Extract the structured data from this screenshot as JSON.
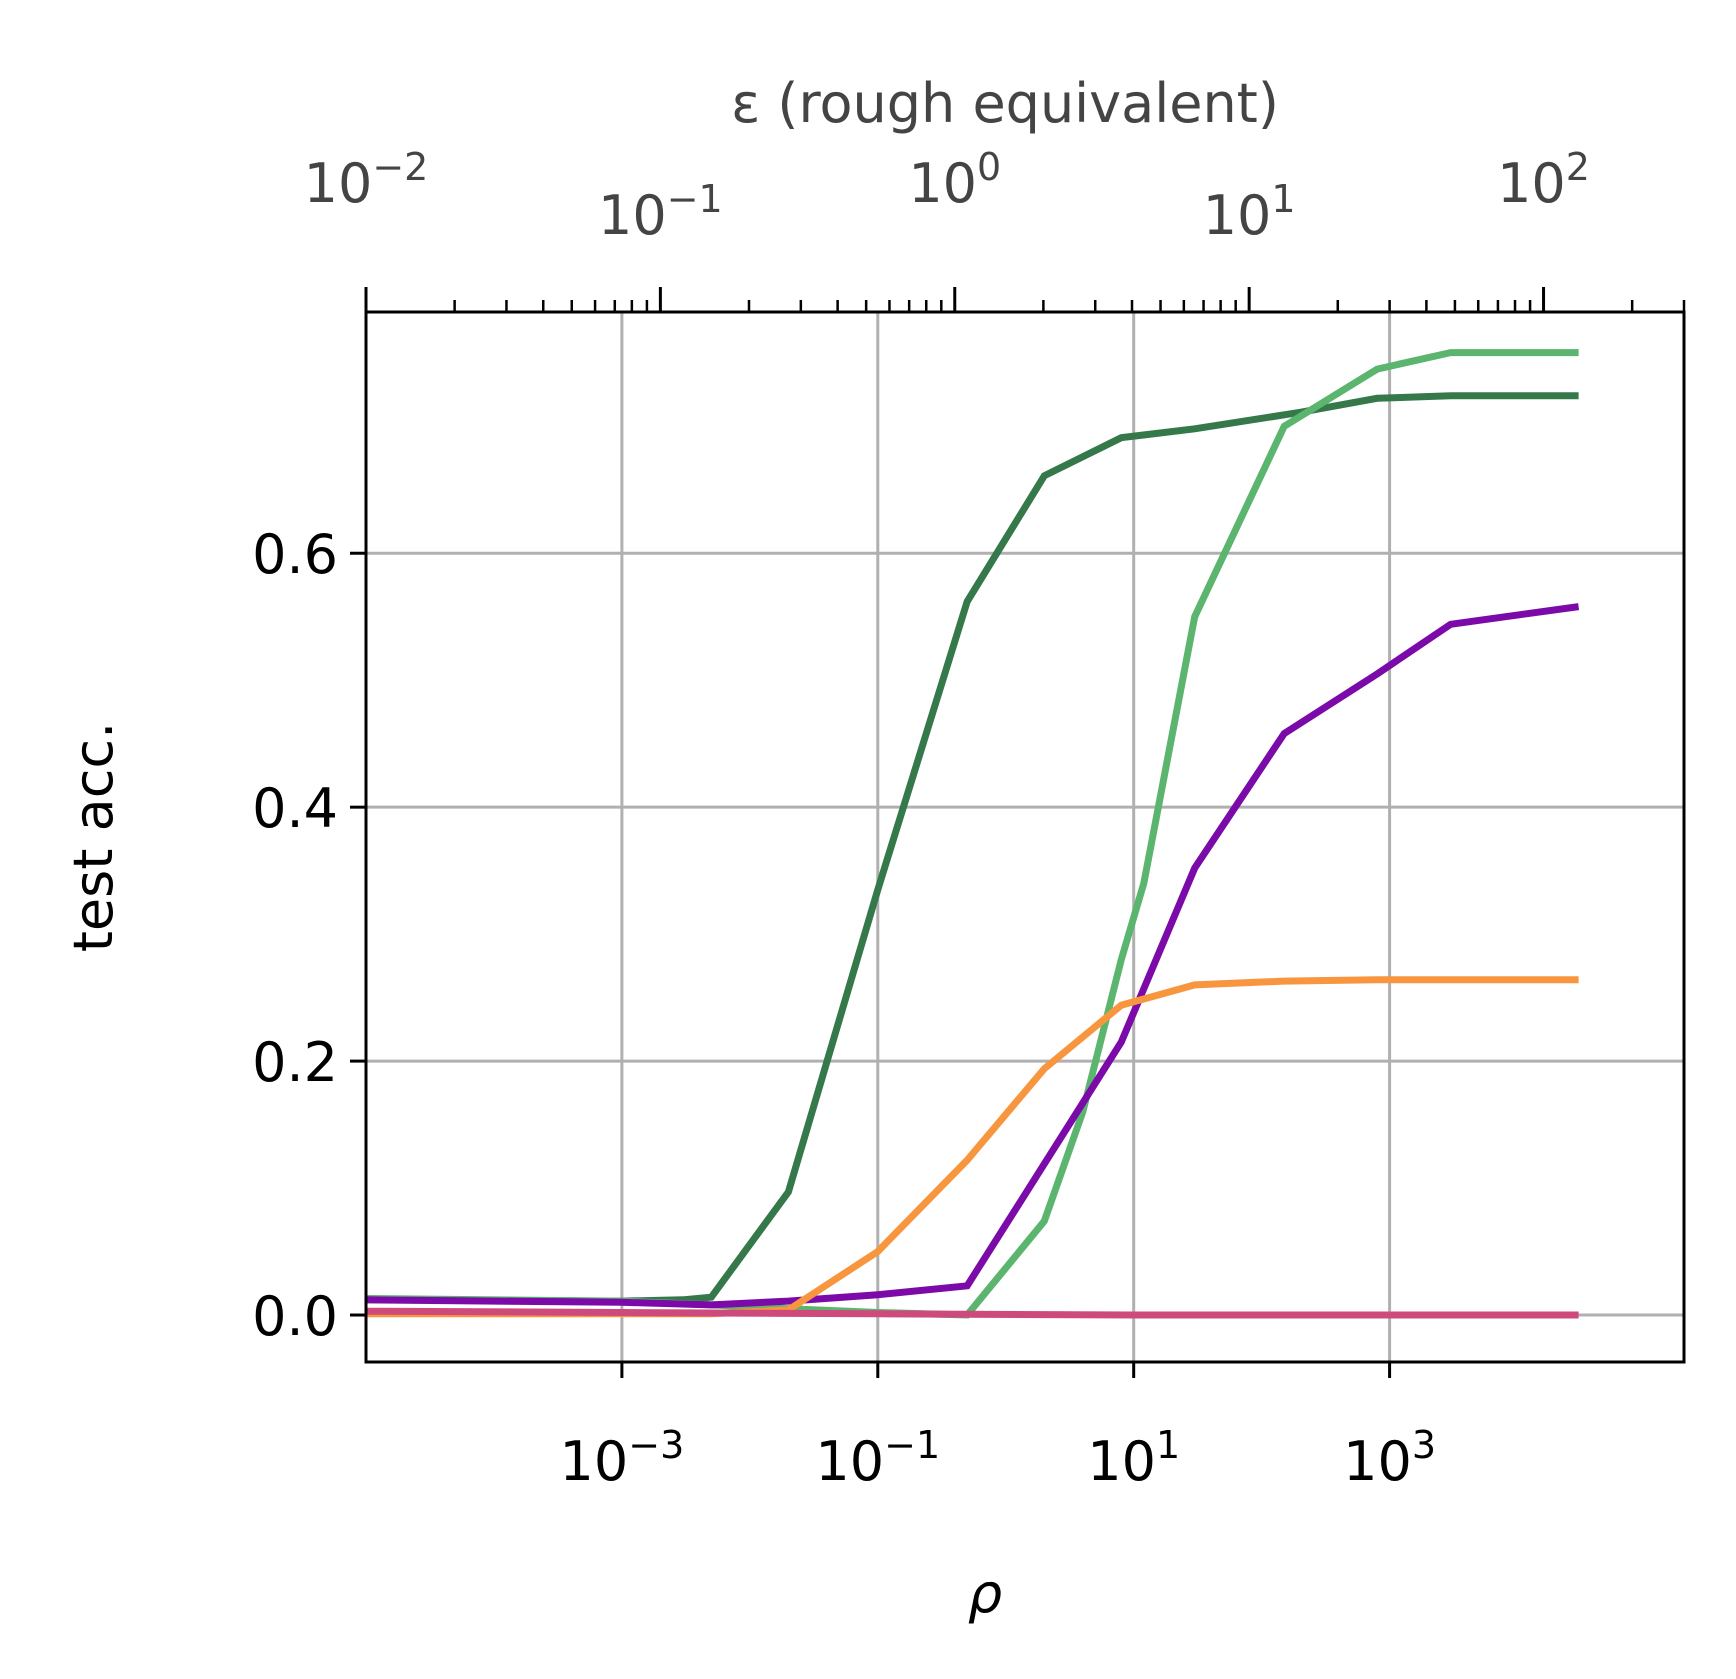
{
  "chart_data": {
    "type": "line",
    "x_scale": "log",
    "y_scale": "linear",
    "xlabel": "ρ",
    "ylabel": "test acc.",
    "top_xlabel": "ε (rough equivalent)",
    "xlim": [
      1e-05,
      200000
    ],
    "ylim": [
      -0.037,
      0.79
    ],
    "grid": true,
    "yticks": [
      0.0,
      0.2,
      0.4,
      0.6
    ],
    "ytick_labels": [
      "0.0",
      "0.2",
      "0.4",
      "0.6"
    ],
    "xticks": [
      0.001,
      0.1,
      10,
      1000
    ],
    "xtick_labels": [
      {
        "base": "10",
        "exp": "−3"
      },
      {
        "base": "10",
        "exp": "−1"
      },
      {
        "base": "10",
        "exp": "1"
      },
      {
        "base": "10",
        "exp": "3"
      }
    ],
    "top_axis": {
      "scale": "log",
      "xlim": [
        0.01,
        300
      ],
      "ticks": [
        0.01,
        0.1,
        1,
        10,
        100
      ],
      "tick_labels": [
        {
          "base": "10",
          "exp": "−2"
        },
        {
          "base": "10",
          "exp": "−1"
        },
        {
          "base": "10",
          "exp": "0"
        },
        {
          "base": "10",
          "exp": "1"
        },
        {
          "base": "10",
          "exp": "2"
        }
      ]
    },
    "series": [
      {
        "color": "#35784a",
        "x": [
          1e-05,
          0.001,
          0.003,
          0.005,
          0.02,
          0.1,
          0.5,
          2,
          8,
          30,
          200,
          800,
          3000,
          30000
        ],
        "y": [
          0.012,
          0.011,
          0.012,
          0.014,
          0.097,
          0.335,
          0.562,
          0.661,
          0.691,
          0.698,
          0.711,
          0.722,
          0.724,
          0.724
        ]
      },
      {
        "color": "#5bb56e",
        "x": [
          1e-05,
          0.001,
          0.005,
          0.02,
          0.1,
          0.5,
          2,
          4,
          8,
          12,
          30,
          150,
          800,
          3000,
          30000
        ],
        "y": [
          0.013,
          0.011,
          0.008,
          0.005,
          0.002,
          0.0,
          0.074,
          0.16,
          0.28,
          0.34,
          0.55,
          0.7,
          0.745,
          0.758,
          0.758
        ]
      },
      {
        "color": "#7b0aa8",
        "x": [
          1e-05,
          0.001,
          0.005,
          0.02,
          0.1,
          0.5,
          2,
          8,
          30,
          150,
          800,
          3000,
          30000
        ],
        "y": [
          0.012,
          0.01,
          0.008,
          0.011,
          0.016,
          0.023,
          0.119,
          0.215,
          0.352,
          0.458,
          0.505,
          0.544,
          0.558
        ]
      },
      {
        "color": "#f7963f",
        "x": [
          1e-05,
          0.001,
          0.005,
          0.02,
          0.1,
          0.5,
          2,
          8,
          30,
          150,
          800,
          3000,
          30000
        ],
        "y": [
          0.001,
          0.001,
          0.001,
          0.004,
          0.05,
          0.122,
          0.194,
          0.244,
          0.26,
          0.263,
          0.264,
          0.264,
          0.264
        ]
      },
      {
        "color": "#cf4a7c",
        "x": [
          1e-05,
          0.001,
          0.1,
          10,
          1000,
          30000
        ],
        "y": [
          0.003,
          0.002,
          0.001,
          0.0,
          0.0,
          0.0
        ]
      }
    ]
  }
}
